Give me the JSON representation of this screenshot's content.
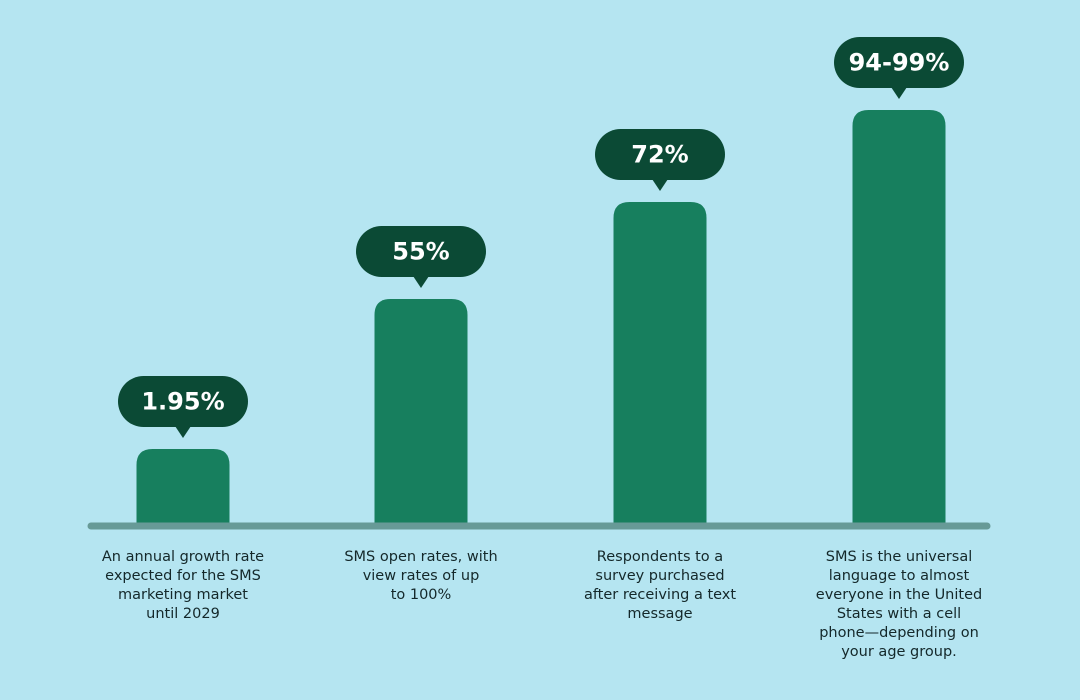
{
  "items": [
    {
      "stat": "1.95%",
      "description": [
        "An annual growth rate",
        "expected for the SMS",
        "marketing market",
        "until 2029"
      ]
    },
    {
      "stat": "55%",
      "description": [
        "SMS open rates, with",
        "view rates of up",
        "to 100%"
      ]
    },
    {
      "stat": "72%",
      "description": [
        "Respondents to a",
        "survey purchased",
        "after receiving a text",
        "message"
      ]
    },
    {
      "stat": "94-99%",
      "description": [
        "SMS is the universal",
        "language to almost",
        "everyone in the United",
        "States with a cell",
        "phone—depending on",
        "your age group."
      ]
    }
  ]
}
